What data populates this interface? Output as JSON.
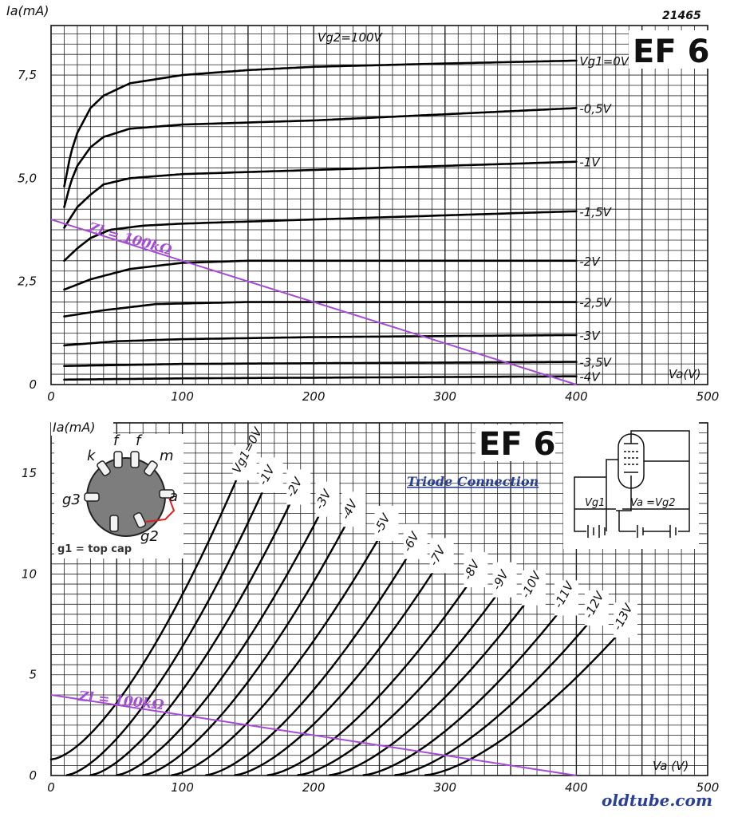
{
  "chart_data": [
    {
      "type": "line",
      "title": "EF 6",
      "figure_number": "21465",
      "condition": "Vg2=100V",
      "xlabel": "Va(V)",
      "ylabel": "Ia(mA)",
      "xlim": [
        0,
        500
      ],
      "ylim": [
        0,
        8.7
      ],
      "x_ticks": [
        "0",
        "100",
        "200",
        "300",
        "400",
        "500"
      ],
      "y_ticks": [
        "0",
        "2,5",
        "5,0",
        "7,5"
      ],
      "series": [
        {
          "name": "Vg1=0V",
          "points": [
            [
              10,
              4.8
            ],
            [
              15,
              5.6
            ],
            [
              20,
              6.1
            ],
            [
              30,
              6.7
            ],
            [
              40,
              7.0
            ],
            [
              60,
              7.3
            ],
            [
              100,
              7.5
            ],
            [
              150,
              7.62
            ],
            [
              200,
              7.7
            ],
            [
              300,
              7.78
            ],
            [
              400,
              7.85
            ]
          ]
        },
        {
          "name": "-0,5V",
          "points": [
            [
              10,
              4.3
            ],
            [
              15,
              4.9
            ],
            [
              20,
              5.3
            ],
            [
              30,
              5.75
            ],
            [
              40,
              6.0
            ],
            [
              60,
              6.2
            ],
            [
              100,
              6.3
            ],
            [
              200,
              6.4
            ],
            [
              300,
              6.55
            ],
            [
              400,
              6.7
            ]
          ]
        },
        {
          "name": "-1V",
          "points": [
            [
              10,
              3.8
            ],
            [
              20,
              4.3
            ],
            [
              30,
              4.6
            ],
            [
              40,
              4.85
            ],
            [
              60,
              5.0
            ],
            [
              100,
              5.1
            ],
            [
              200,
              5.2
            ],
            [
              300,
              5.3
            ],
            [
              400,
              5.4
            ]
          ]
        },
        {
          "name": "-1,5V",
          "points": [
            [
              10,
              3.0
            ],
            [
              20,
              3.3
            ],
            [
              30,
              3.55
            ],
            [
              45,
              3.75
            ],
            [
              70,
              3.85
            ],
            [
              100,
              3.9
            ],
            [
              200,
              4.0
            ],
            [
              300,
              4.1
            ],
            [
              400,
              4.2
            ]
          ]
        },
        {
          "name": "-2V",
          "points": [
            [
              10,
              2.3
            ],
            [
              30,
              2.55
            ],
            [
              60,
              2.8
            ],
            [
              100,
              2.95
            ],
            [
              150,
              3.0
            ],
            [
              200,
              3.0
            ],
            [
              300,
              3.0
            ],
            [
              400,
              3.0
            ]
          ]
        },
        {
          "name": "-2,5V",
          "points": [
            [
              10,
              1.65
            ],
            [
              40,
              1.8
            ],
            [
              80,
              1.95
            ],
            [
              150,
              2.0
            ],
            [
              400,
              2.0
            ]
          ]
        },
        {
          "name": "-3V",
          "points": [
            [
              10,
              0.95
            ],
            [
              50,
              1.05
            ],
            [
              100,
              1.1
            ],
            [
              200,
              1.15
            ],
            [
              400,
              1.2
            ]
          ]
        },
        {
          "name": "-3,5V",
          "points": [
            [
              10,
              0.45
            ],
            [
              100,
              0.5
            ],
            [
              400,
              0.55
            ]
          ]
        },
        {
          "name": "-4V",
          "points": [
            [
              10,
              0.12
            ],
            [
              100,
              0.15
            ],
            [
              400,
              0.2
            ]
          ]
        }
      ],
      "load_line": {
        "label": "Zl = 100kΩ",
        "points": [
          [
            0,
            4.0
          ],
          [
            400,
            0.0
          ]
        ],
        "color": "#a64ad8"
      }
    },
    {
      "type": "line",
      "title": "EF 6",
      "subtitle": "Triode Connection",
      "xlabel": "Va (V)",
      "ylabel": "Ia(mA)",
      "xlim": [
        0,
        500
      ],
      "ylim": [
        0,
        17.5
      ],
      "x_ticks": [
        "0",
        "100",
        "200",
        "300",
        "400",
        "500"
      ],
      "y_ticks": [
        "0",
        "5",
        "10",
        "15"
      ],
      "series": [
        {
          "name": "Vg1=0V",
          "start": 0,
          "end": 142,
          "ymax": 14.8
        },
        {
          "name": "-1V",
          "start": 12,
          "end": 162,
          "ymax": 14.2
        },
        {
          "name": "-2V",
          "start": 30,
          "end": 183,
          "ymax": 13.6
        },
        {
          "name": "-3V",
          "start": 50,
          "end": 205,
          "ymax": 13.0
        },
        {
          "name": "-4V",
          "start": 70,
          "end": 225,
          "ymax": 12.5
        },
        {
          "name": "-5V",
          "start": 92,
          "end": 250,
          "ymax": 11.8
        },
        {
          "name": "-6V",
          "start": 118,
          "end": 272,
          "ymax": 10.9
        },
        {
          "name": "-7V",
          "start": 140,
          "end": 292,
          "ymax": 10.2
        },
        {
          "name": "-8V",
          "start": 165,
          "end": 318,
          "ymax": 9.5
        },
        {
          "name": "-9V",
          "start": 188,
          "end": 340,
          "ymax": 9.0
        },
        {
          "name": "-10V",
          "start": 212,
          "end": 362,
          "ymax": 8.6
        },
        {
          "name": "-11V",
          "start": 238,
          "end": 387,
          "ymax": 8.1
        },
        {
          "name": "-12V",
          "start": 262,
          "end": 410,
          "ymax": 7.6
        },
        {
          "name": "-13V",
          "start": 285,
          "end": 432,
          "ymax": 7.0
        }
      ],
      "load_line": {
        "label": "Zl = 100kΩ",
        "points": [
          [
            0,
            4.0
          ],
          [
            400,
            0.0
          ]
        ],
        "color": "#a64ad8"
      },
      "pinout": {
        "pins": [
          "k",
          "f",
          "f",
          "m",
          "a",
          "g2",
          "g3"
        ],
        "note": "g1 = top cap"
      },
      "schematic": {
        "labels": [
          "Vg1",
          "Va =Vg2"
        ]
      }
    }
  ],
  "footer": {
    "watermark": "oldtube.com"
  },
  "colors": {
    "grid": "#222222",
    "curve": "#000000",
    "load_line": "#a64ad8",
    "subtitle": "#2a3f9a",
    "watermark": "#2a3f9a",
    "pin_body": "#7d7d7d"
  }
}
